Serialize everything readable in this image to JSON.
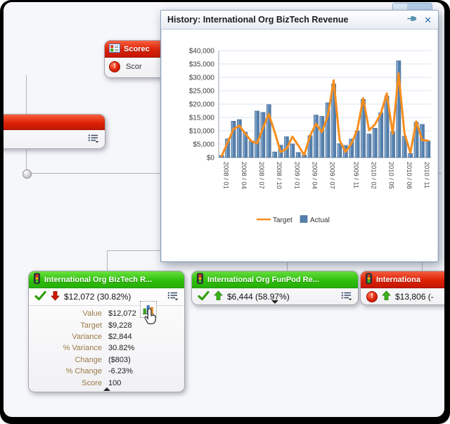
{
  "popup": {
    "title": "History: International Org BizTech Revenue"
  },
  "icons": {
    "alert_glyph": "!",
    "close_glyph": "✕"
  },
  "chart_data": {
    "type": "bar",
    "title": "History: International Org BizTech Revenue",
    "xlabel": "",
    "ylabel": "",
    "ylim": [
      0,
      40000
    ],
    "ytick_step": 5000,
    "grid": true,
    "legend_position": "bottom",
    "categories": [
      "2008 / 01",
      "2008 / 02",
      "2008 / 03",
      "2008 / 04",
      "2008 / 05",
      "2008 / 06",
      "2008 / 07",
      "2008 / 08",
      "2008 / 09",
      "2008 / 10",
      "2008 / 11",
      "2008 / 12",
      "2009 / 01",
      "2009 / 02",
      "2009 / 03",
      "2009 / 04",
      "2009 / 05",
      "2009 / 06",
      "2009 / 07",
      "2009 / 08",
      "2009 / 09",
      "2009 / 10",
      "2009 / 11",
      "2009 / 12",
      "2010 / 01",
      "2010 / 02",
      "2010 / 03",
      "2010 / 04",
      "2010 / 05",
      "2010 / 06",
      "2010 / 07",
      "2010 / 08",
      "2010 / 09",
      "2010 / 10",
      "2010 / 11",
      "2010 / 12"
    ],
    "tick_indices": [
      0,
      3,
      6,
      9,
      12,
      15,
      18,
      22,
      25,
      28,
      31,
      34
    ],
    "series": [
      {
        "name": "Target",
        "type": "line",
        "color": "#F68E1E",
        "values": [
          500,
          5500,
          10600,
          11900,
          9000,
          6200,
          5300,
          11000,
          16300,
          9500,
          2100,
          3200,
          7800,
          4500,
          900,
          8200,
          12600,
          9500,
          15500,
          28900,
          6500,
          2100,
          5200,
          10400,
          22200,
          10200,
          12400,
          16500,
          24000,
          8900,
          31500,
          9000,
          1800,
          13500,
          6500,
          6300
        ]
      },
      {
        "name": "Actual",
        "type": "bar",
        "color": "#5580AD",
        "values": [
          800,
          7000,
          13600,
          14200,
          9500,
          6200,
          17400,
          16900,
          19800,
          2100,
          4600,
          7800,
          5100,
          1900,
          1000,
          8200,
          15900,
          15400,
          20500,
          27500,
          5200,
          4500,
          6900,
          10000,
          21800,
          8800,
          11000,
          16800,
          23000,
          9700,
          36200,
          8000,
          1500,
          13200,
          12400,
          6200
        ]
      }
    ]
  },
  "tree": {
    "scorecard_title": "Scorec",
    "scorecard_status": "Scor"
  },
  "cards": [
    {
      "title": "International Org BizTech R...",
      "status_text": "$12,072 (30.82%)",
      "details": [
        {
          "label": "Value",
          "value": "$12,072"
        },
        {
          "label": "Target",
          "value": "$9,228"
        },
        {
          "label": "Variance",
          "value": "$2,844"
        },
        {
          "label": "% Variance",
          "value": "30.82%"
        },
        {
          "label": "Change",
          "value": "($803)"
        },
        {
          "label": "% Change",
          "value": "-6.23%"
        },
        {
          "label": "Score",
          "value": "100"
        }
      ]
    },
    {
      "title": "International Org FunPod Re...",
      "status_text": "$6,444 (58.97%)"
    },
    {
      "title": "Internationa",
      "status_text": "$13,806 (-"
    }
  ],
  "colors": {
    "green_header": "#2FBF0E",
    "red_header": "#DD2106",
    "bar": "#5580AD",
    "target_line": "#F68E1E",
    "detail_label": "#9B7B48"
  }
}
